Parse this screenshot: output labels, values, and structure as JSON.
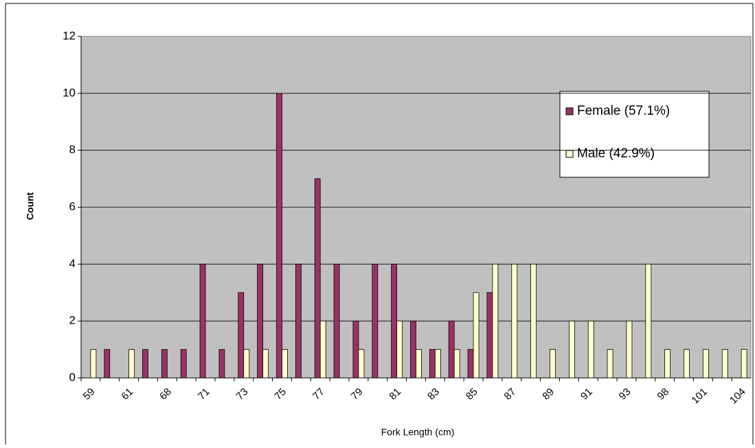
{
  "chart_data": {
    "type": "bar",
    "x_label": "Fork Length (cm)",
    "y_label": "Count",
    "categories": [
      "59",
      null,
      "61",
      null,
      "68",
      null,
      "71",
      null,
      "73",
      null,
      "75",
      null,
      "77",
      null,
      "79",
      null,
      "81",
      null,
      "83",
      null,
      "85",
      null,
      "87",
      null,
      "89",
      null,
      "91",
      null,
      "93",
      null,
      "98",
      null,
      "101",
      null,
      "104"
    ],
    "series": [
      {
        "name": "Female (57.1%)",
        "color": "#993366",
        "values": [
          0,
          1,
          0,
          1,
          1,
          1,
          4,
          1,
          3,
          4,
          10,
          4,
          7,
          4,
          2,
          4,
          4,
          2,
          1,
          2,
          1,
          3,
          0,
          0,
          0,
          0,
          0,
          0,
          0,
          0,
          0,
          0,
          0,
          0,
          0
        ]
      },
      {
        "name": "Male (42.9%)",
        "color": "#ffffcc",
        "values": [
          1,
          0,
          1,
          0,
          0,
          0,
          0,
          0,
          1,
          1,
          1,
          0,
          2,
          0,
          1,
          0,
          2,
          1,
          1,
          1,
          3,
          4,
          4,
          4,
          1,
          2,
          2,
          1,
          2,
          4,
          1,
          1,
          1,
          1,
          1
        ]
      }
    ],
    "ylim": [
      0,
      12
    ],
    "yticks": [
      0,
      2,
      4,
      6,
      8,
      10,
      12
    ],
    "grid": true
  }
}
